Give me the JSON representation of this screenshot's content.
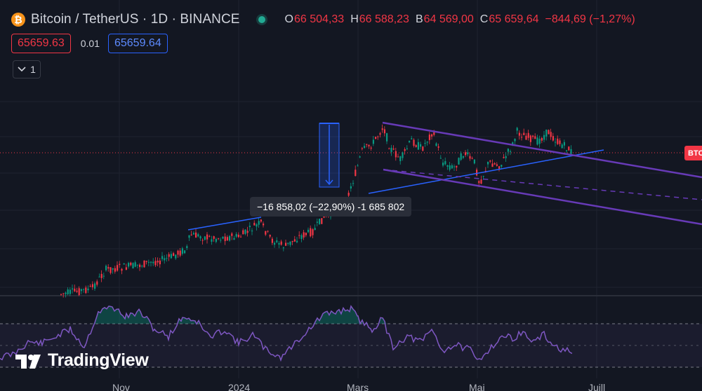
{
  "legend": {
    "symbol": "Bitcoin / TetherUS · 1D · BINANCE",
    "btc_glyph": "₿",
    "open_key": "O",
    "open": "66 504,33",
    "high_key": "H",
    "high": "66 588,23",
    "low_key": "B",
    "low": "64 569,00",
    "close_key": "C",
    "close": "65 659,64",
    "change": "−844,69 (−1,27%)",
    "status_color": "#22ab94"
  },
  "trade": {
    "sell_price": "65659.63",
    "spread": "0.01",
    "buy_price": "65659.64"
  },
  "indicators_toggle": {
    "count": "1",
    "icon": "chevron-down-icon"
  },
  "measure": {
    "label": "−16 858,02 (−22,90%) -1 685 802"
  },
  "price_tag": {
    "label": "BTC"
  },
  "logo": {
    "text": "TradingView"
  },
  "time_axis": [
    "Nov",
    "2024",
    "Mars",
    "Mai",
    "Juill"
  ],
  "colors": {
    "background": "#131722",
    "up": "#089981",
    "down": "#f23645",
    "rsi": "#7e57c2",
    "trendline": "#2962ff",
    "channel": "#673ab7"
  }
}
